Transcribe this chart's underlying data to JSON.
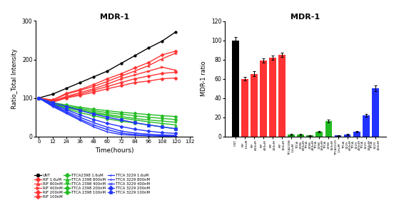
{
  "title": "MDR-1",
  "title2": "MDR-1",
  "time_points": [
    0,
    12,
    24,
    36,
    48,
    60,
    72,
    84,
    96,
    108,
    120
  ],
  "line_data_keys": [
    "UNT",
    "RIF 1.6uM",
    "RIF 800nM",
    "RIF 400nM",
    "RIF 200nM",
    "RIF 100nM",
    "TTCA2398 1.6uM",
    "TTCA 2398 800nM",
    "TTCA 2398 400nM",
    "TTCA 2398 200nM",
    "TTCA 2398 100nM",
    "TTCA 3229 1.6uM",
    "TTCA 3229 800nM",
    "TTCA 3229 400nM",
    "TTCA 3229 200nM",
    "TTCA 3229 100nM"
  ],
  "line_data_vals": [
    [
      100,
      110,
      125,
      140,
      155,
      170,
      190,
      210,
      230,
      248,
      272
    ],
    [
      100,
      95,
      112,
      122,
      135,
      150,
      163,
      178,
      192,
      212,
      222
    ],
    [
      100,
      94,
      110,
      120,
      130,
      143,
      157,
      170,
      184,
      202,
      217
    ],
    [
      100,
      92,
      104,
      114,
      124,
      136,
      150,
      160,
      170,
      180,
      172
    ],
    [
      100,
      90,
      102,
      110,
      120,
      130,
      140,
      150,
      157,
      164,
      167
    ],
    [
      100,
      89,
      100,
      107,
      115,
      124,
      132,
      140,
      144,
      150,
      152
    ],
    [
      100,
      82,
      72,
      62,
      54,
      46,
      40,
      35,
      30,
      25,
      20
    ],
    [
      100,
      84,
      75,
      67,
      60,
      54,
      48,
      43,
      38,
      34,
      30
    ],
    [
      100,
      85,
      77,
      70,
      63,
      57,
      52,
      47,
      43,
      40,
      37
    ],
    [
      100,
      86,
      79,
      73,
      67,
      62,
      58,
      54,
      50,
      47,
      44
    ],
    [
      100,
      88,
      82,
      76,
      71,
      67,
      63,
      60,
      57,
      54,
      52
    ],
    [
      100,
      78,
      60,
      42,
      25,
      12,
      5,
      3,
      2,
      1,
      1
    ],
    [
      100,
      80,
      63,
      45,
      30,
      18,
      9,
      5,
      3,
      2,
      2
    ],
    [
      100,
      82,
      66,
      50,
      36,
      24,
      14,
      9,
      6,
      4,
      3
    ],
    [
      100,
      84,
      70,
      56,
      44,
      34,
      26,
      19,
      14,
      10,
      8
    ],
    [
      100,
      88,
      78,
      68,
      58,
      50,
      43,
      36,
      30,
      25,
      20
    ]
  ],
  "line_colors": [
    "#000000",
    "#FF3333",
    "#FF3333",
    "#FF3333",
    "#FF3333",
    "#FF3333",
    "#22BB22",
    "#22BB22",
    "#22BB22",
    "#22BB22",
    "#22BB22",
    "#2233FF",
    "#2233FF",
    "#2233FF",
    "#2233FF",
    "#2233FF"
  ],
  "line_markers": [
    "o",
    "D",
    "^",
    ">",
    "D",
    "D",
    "D",
    "^",
    "v",
    "D",
    "D",
    "+",
    "+",
    "x",
    "D",
    "s"
  ],
  "legend_labels": [
    "UNT",
    "RIF 1.6uM",
    "RIF 800nM",
    "RIF 400nM",
    "RIF 200nM",
    "RIF 100nM",
    "TTCA2398 1.6uM",
    "TTCA 2398 800nM",
    "TTCA 2398 400nM",
    "TTCA 2398 200nM",
    "TTCA 2398 100nM",
    "TTCA 3229 1.6uM",
    "TTCA 3229 800nM",
    "TTCA 3229 400nM",
    "TTCA 3229 200nM",
    "TTCA 3229 100nM"
  ],
  "bar_values": [
    100,
    60,
    65,
    79,
    82,
    85,
    2,
    2,
    1,
    5,
    16,
    1,
    2,
    5,
    22,
    50
  ],
  "bar_errors": [
    3,
    2,
    2.5,
    2,
    2,
    2,
    0.5,
    0.5,
    0.3,
    1,
    1.5,
    0.3,
    0.5,
    1,
    1.5,
    3
  ],
  "bar_colors": [
    "#000000",
    "#FF3333",
    "#FF3333",
    "#FF3333",
    "#FF3333",
    "#FF3333",
    "#22BB22",
    "#22BB22",
    "#22BB22",
    "#22BB22",
    "#22BB22",
    "#2233FF",
    "#2233FF",
    "#2233FF",
    "#2233FF",
    "#2233FF"
  ],
  "bar_xlabels": [
    "UNT",
    "RIF\n1.6uM",
    "RIF\n800nM",
    "RIF\n400nM",
    "RIF\n200nM",
    "RIF\n100nM",
    "TTCA2398\n1.6uM",
    "TTCA\n2398\n800nM",
    "TTCA\n2398\n400nM",
    "TTCA\n2398\n200nM",
    "TTCA\n2398\n100nM",
    "TTCA3229\n1.6uM",
    "TTCA\n3229\n800nM",
    "TTCA\n3229\n400nM",
    "TTCA\n3229\n200nM",
    "TTCA\n3229\n100nM"
  ],
  "ylabel_line": "Ratio_Total Intensity",
  "xlabel_line": "Time(hours)",
  "ylabel_bar": "MDR-1 ratio",
  "ylim_line": [
    0,
    300
  ],
  "ylim_bar": [
    0,
    120
  ],
  "yticks_line": [
    0,
    100,
    200,
    300
  ],
  "yticks_bar": [
    0,
    20,
    40,
    60,
    80,
    100,
    120
  ],
  "xticks_line": [
    0,
    12,
    24,
    36,
    48,
    60,
    72,
    84,
    96,
    108,
    120,
    132
  ]
}
